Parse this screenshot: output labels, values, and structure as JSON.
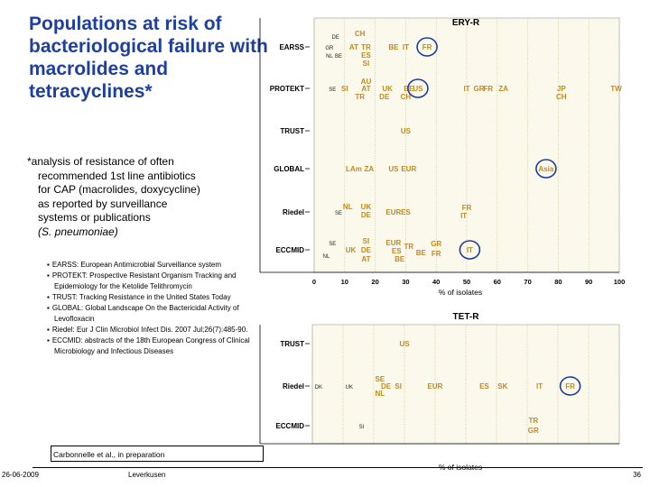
{
  "slide": {
    "title": "Populations at risk of bacteriological failure with macrolides and tetracyclines*",
    "description": [
      "*analysis of resistance of often",
      "recommended 1st line antibiotics",
      "for CAP (macrolides, doxycycline)",
      "as reported by surveillance",
      "systems or publications"
    ],
    "description_organism": "(S. pneumoniae)",
    "legend_items": [
      "EARSS: European Antimicrobial Surveillance system",
      "PROTEKT: Prospective Resistant Organism Tracking and Epidemiology for the Ketolide Telithromycin",
      "TRUST: Tracking Resistance in the United States Today",
      "GLOBAL: Global Landscape On the Bactericidal Activity of Levofloxacin",
      "Riedel: Eur J Clin Microbiol Infect Dis. 2007 Jul;26(7):485-90.",
      "ECCMID: abstracts of the 18th European Congress of Clinical Microbiology and Infectious Diseases"
    ],
    "credit": "Carbonnelle et al., in preparation",
    "footer_date": "26-06-2009",
    "footer_place": "Leverkusen",
    "page_number": "36",
    "highlight_color": "#1a3aa0",
    "label_color": "#c08a20"
  },
  "chart_data": [
    {
      "type": "scatter",
      "title": "ERY-R",
      "xlabel": "% of isolates",
      "xlim": [
        0,
        100
      ],
      "xticks": [
        0,
        10,
        20,
        30,
        40,
        50,
        60,
        70,
        80,
        90,
        100
      ],
      "categories": [
        "EARSS",
        "PROTEKT",
        "TRUST",
        "GLOBAL",
        "Riedel",
        "ECCMID"
      ],
      "points": [
        {
          "cat": "EARSS",
          "x": 7,
          "label": "DE",
          "dy": -12,
          "style": "g"
        },
        {
          "cat": "EARSS",
          "x": 5,
          "label": "GR",
          "dy": 0,
          "style": "g"
        },
        {
          "cat": "EARSS",
          "x": 5,
          "label": "NL",
          "dy": 9,
          "style": "g"
        },
        {
          "cat": "EARSS",
          "x": 8,
          "label": "BE",
          "dy": 9,
          "style": "g"
        },
        {
          "cat": "EARSS",
          "x": 15,
          "label": "CH",
          "dy": -15
        },
        {
          "cat": "EARSS",
          "x": 13,
          "label": "AT",
          "dy": 0
        },
        {
          "cat": "EARSS",
          "x": 17,
          "label": "TR",
          "dy": 0
        },
        {
          "cat": "EARSS",
          "x": 17,
          "label": "ES",
          "dy": 9
        },
        {
          "cat": "EARSS",
          "x": 17,
          "label": "SI",
          "dy": 18
        },
        {
          "cat": "EARSS",
          "x": 26,
          "label": "BE",
          "dy": 0
        },
        {
          "cat": "EARSS",
          "x": 30,
          "label": "IT",
          "dy": 0
        },
        {
          "cat": "EARSS",
          "x": 37,
          "label": "FR",
          "dy": 0,
          "circled": true
        },
        {
          "cat": "PROTEKT",
          "x": 6,
          "label": "SE",
          "dy": 0,
          "style": "g"
        },
        {
          "cat": "PROTEKT",
          "x": 10,
          "label": "SI",
          "dy": 0
        },
        {
          "cat": "PROTEKT",
          "x": 17,
          "label": "AT",
          "dy": 0
        },
        {
          "cat": "PROTEKT",
          "x": 17,
          "label": "AU",
          "dy": -8
        },
        {
          "cat": "PROTEKT",
          "x": 15,
          "label": "TR",
          "dy": 9
        },
        {
          "cat": "PROTEKT",
          "x": 24,
          "label": "UK",
          "dy": 0
        },
        {
          "cat": "PROTEKT",
          "x": 23,
          "label": "DE",
          "dy": 9
        },
        {
          "cat": "PROTEKT",
          "x": 31,
          "label": "BE",
          "dy": 0
        },
        {
          "cat": "PROTEKT",
          "x": 30,
          "label": "CH",
          "dy": 9
        },
        {
          "cat": "PROTEKT",
          "x": 34,
          "label": "US",
          "dy": 0,
          "circled": true
        },
        {
          "cat": "PROTEKT",
          "x": 50,
          "label": "IT",
          "dy": 0
        },
        {
          "cat": "PROTEKT",
          "x": 54,
          "label": "GR",
          "dy": 0
        },
        {
          "cat": "PROTEKT",
          "x": 57,
          "label": "FR",
          "dy": 0
        },
        {
          "cat": "PROTEKT",
          "x": 62,
          "label": "ZA",
          "dy": 0
        },
        {
          "cat": "PROTEKT",
          "x": 81,
          "label": "JP",
          "dy": 0
        },
        {
          "cat": "PROTEKT",
          "x": 81,
          "label": "CH",
          "dy": 9
        },
        {
          "cat": "PROTEKT",
          "x": 99,
          "label": "TW",
          "dy": 0
        },
        {
          "cat": "TRUST",
          "x": 30,
          "label": "US",
          "dy": 0
        },
        {
          "cat": "GLOBAL",
          "x": 13,
          "label": "LAm",
          "dy": 0
        },
        {
          "cat": "GLOBAL",
          "x": 18,
          "label": "ZA",
          "dy": 0
        },
        {
          "cat": "GLOBAL",
          "x": 26,
          "label": "US",
          "dy": 0
        },
        {
          "cat": "GLOBAL",
          "x": 31,
          "label": "EUR",
          "dy": 0
        },
        {
          "cat": "GLOBAL",
          "x": 76,
          "label": "Asia",
          "dy": 0,
          "circled": true
        },
        {
          "cat": "Riedel",
          "x": 8,
          "label": "SE",
          "dy": 0,
          "style": "g"
        },
        {
          "cat": "Riedel",
          "x": 11,
          "label": "NL",
          "dy": -6
        },
        {
          "cat": "Riedel",
          "x": 17,
          "label": "UK",
          "dy": -6
        },
        {
          "cat": "Riedel",
          "x": 17,
          "label": "DE",
          "dy": 3
        },
        {
          "cat": "Riedel",
          "x": 26,
          "label": "EUR",
          "dy": 0
        },
        {
          "cat": "Riedel",
          "x": 30,
          "label": "ES",
          "dy": 0
        },
        {
          "cat": "Riedel",
          "x": 50,
          "label": "FR",
          "dy": -5
        },
        {
          "cat": "Riedel",
          "x": 49,
          "label": "IT",
          "dy": 4
        },
        {
          "cat": "ECCMID",
          "x": 6,
          "label": "SE",
          "dy": -8,
          "style": "g"
        },
        {
          "cat": "ECCMID",
          "x": 4,
          "label": "NL",
          "dy": 6,
          "style": "g"
        },
        {
          "cat": "ECCMID",
          "x": 12,
          "label": "UK",
          "dy": 0
        },
        {
          "cat": "ECCMID",
          "x": 17,
          "label": "SI",
          "dy": -10
        },
        {
          "cat": "ECCMID",
          "x": 17,
          "label": "DE",
          "dy": 0
        },
        {
          "cat": "ECCMID",
          "x": 17,
          "label": "AT",
          "dy": 10
        },
        {
          "cat": "ECCMID",
          "x": 26,
          "label": "EUR",
          "dy": -8
        },
        {
          "cat": "ECCMID",
          "x": 27,
          "label": "ES",
          "dy": 1
        },
        {
          "cat": "ECCMID",
          "x": 28,
          "label": "BE",
          "dy": 10
        },
        {
          "cat": "ECCMID",
          "x": 31,
          "label": "TR",
          "dy": -4
        },
        {
          "cat": "ECCMID",
          "x": 35,
          "label": "BE",
          "dy": 3
        },
        {
          "cat": "ECCMID",
          "x": 40,
          "label": "GR",
          "dy": -7
        },
        {
          "cat": "ECCMID",
          "x": 40,
          "label": "FR",
          "dy": 4
        },
        {
          "cat": "ECCMID",
          "x": 51,
          "label": "IT",
          "dy": 0,
          "circled": true
        }
      ]
    },
    {
      "type": "scatter",
      "title": "TET-R",
      "xlabel": "% of isolates",
      "xlim": [
        0,
        50
      ],
      "categories": [
        "TRUST",
        "Riedel",
        "ECCMID"
      ],
      "points": [
        {
          "cat": "TRUST",
          "x": 15,
          "label": "US",
          "dy": 0
        },
        {
          "cat": "Riedel",
          "x": 1,
          "label": "DK",
          "dy": 0,
          "style": "g"
        },
        {
          "cat": "Riedel",
          "x": 6,
          "label": "UK",
          "dy": 0,
          "style": "g"
        },
        {
          "cat": "Riedel",
          "x": 11,
          "label": "SE",
          "dy": -8
        },
        {
          "cat": "Riedel",
          "x": 12,
          "label": "DE",
          "dy": 0
        },
        {
          "cat": "Riedel",
          "x": 11,
          "label": "NL",
          "dy": 8
        },
        {
          "cat": "Riedel",
          "x": 14,
          "label": "SI",
          "dy": 0
        },
        {
          "cat": "Riedel",
          "x": 20,
          "label": "EUR",
          "dy": 0
        },
        {
          "cat": "Riedel",
          "x": 28,
          "label": "ES",
          "dy": 0
        },
        {
          "cat": "Riedel",
          "x": 31,
          "label": "SK",
          "dy": 0
        },
        {
          "cat": "Riedel",
          "x": 37,
          "label": "IT",
          "dy": 0
        },
        {
          "cat": "Riedel",
          "x": 42,
          "label": "FR",
          "dy": 0,
          "circled": true
        },
        {
          "cat": "ECCMID",
          "x": 8,
          "label": "SI",
          "dy": 0,
          "style": "g"
        },
        {
          "cat": "ECCMID",
          "x": 36,
          "label": "TR",
          "dy": -6
        },
        {
          "cat": "ECCMID",
          "x": 36,
          "label": "GR",
          "dy": 5
        }
      ]
    }
  ]
}
